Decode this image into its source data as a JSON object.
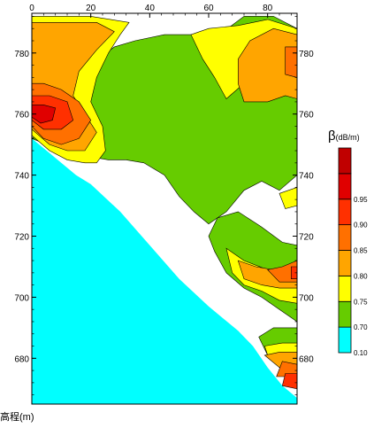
{
  "chart_data": {
    "type": "heatmap",
    "title": "",
    "xlabel": "",
    "ylabel": "高程(m)",
    "xlim": [
      0,
      90
    ],
    "ylim": [
      665,
      793
    ],
    "x_ticks": [
      0,
      20,
      40,
      60,
      80
    ],
    "y_ticks": [
      680,
      700,
      720,
      740,
      760,
      780
    ],
    "legend": {
      "title_symbol": "β",
      "title_unit": "(dB/m)",
      "levels": [
        "0.10",
        "0.70",
        "0.75",
        "0.80",
        "0.85",
        "0.90",
        "0.95"
      ],
      "colors": [
        "#00ffff",
        "#66cc00",
        "#ffff00",
        "#ffa500",
        "#ff7000",
        "#ff3000",
        "#e00000",
        "#c00000"
      ]
    },
    "coverage_boundary": [
      [
        0,
        752
      ],
      [
        5,
        748
      ],
      [
        10,
        744
      ],
      [
        15,
        740
      ],
      [
        20,
        737
      ],
      [
        30,
        728
      ],
      [
        40,
        717
      ],
      [
        50,
        706
      ],
      [
        60,
        697
      ],
      [
        70,
        689
      ],
      [
        75,
        684
      ],
      [
        80,
        677
      ],
      [
        85,
        671
      ],
      [
        90,
        667
      ]
    ],
    "regions": [
      {
        "level": "0.70",
        "points": [
          [
            0,
            752
          ],
          [
            10,
            760
          ],
          [
            14,
            768
          ],
          [
            20,
            776
          ],
          [
            28,
            782
          ],
          [
            35,
            784
          ],
          [
            45,
            786
          ],
          [
            55,
            786
          ],
          [
            65,
            787
          ],
          [
            72,
            792
          ],
          [
            82,
            792
          ],
          [
            90,
            788
          ],
          [
            90,
            740
          ],
          [
            84,
            735
          ],
          [
            78,
            738
          ],
          [
            72,
            735
          ],
          [
            66,
            728
          ],
          [
            60,
            724
          ],
          [
            55,
            728
          ],
          [
            50,
            733
          ],
          [
            45,
            740
          ],
          [
            38,
            744
          ],
          [
            32,
            745
          ],
          [
            26,
            745
          ],
          [
            20,
            746
          ],
          [
            15,
            746
          ],
          [
            10,
            749
          ],
          [
            5,
            750
          ]
        ]
      },
      {
        "level": "0.70",
        "points": [
          [
            63,
            726
          ],
          [
            70,
            728
          ],
          [
            78,
            723
          ],
          [
            85,
            718
          ],
          [
            90,
            717
          ],
          [
            90,
            692
          ],
          [
            84,
            696
          ],
          [
            78,
            700
          ],
          [
            72,
            703
          ],
          [
            66,
            708
          ],
          [
            62,
            715
          ],
          [
            60,
            720
          ]
        ]
      },
      {
        "level": "0.70",
        "points": [
          [
            77,
            687
          ],
          [
            82,
            690
          ],
          [
            88,
            690
          ],
          [
            90,
            690
          ],
          [
            90,
            676
          ],
          [
            85,
            678
          ],
          [
            80,
            681
          ]
        ]
      },
      {
        "level": "0.75",
        "points": [
          [
            0,
            753
          ],
          [
            6,
            748
          ],
          [
            12,
            745
          ],
          [
            18,
            744
          ],
          [
            22,
            744
          ],
          [
            25,
            748
          ],
          [
            24,
            756
          ],
          [
            20,
            764
          ],
          [
            22,
            772
          ],
          [
            26,
            780
          ],
          [
            30,
            786
          ],
          [
            33,
            790
          ],
          [
            20,
            792
          ],
          [
            0,
            792
          ]
        ]
      },
      {
        "level": "0.75",
        "points": [
          [
            66,
            765
          ],
          [
            72,
            770
          ],
          [
            78,
            772
          ],
          [
            84,
            770
          ],
          [
            90,
            768
          ],
          [
            90,
            788
          ],
          [
            80,
            791
          ],
          [
            70,
            789
          ],
          [
            60,
            788
          ],
          [
            54,
            786
          ],
          [
            58,
            778
          ],
          [
            62,
            772
          ]
        ]
      },
      {
        "level": "0.75",
        "points": [
          [
            66,
            716
          ],
          [
            72,
            712
          ],
          [
            80,
            709
          ],
          [
            88,
            708
          ],
          [
            90,
            710
          ],
          [
            90,
            698
          ],
          [
            84,
            699
          ],
          [
            78,
            702
          ],
          [
            72,
            704
          ],
          [
            68,
            708
          ]
        ]
      },
      {
        "level": "0.75",
        "points": [
          [
            84,
            734
          ],
          [
            90,
            736
          ],
          [
            90,
            730
          ],
          [
            86,
            729
          ]
        ]
      },
      {
        "level": "0.75",
        "points": [
          [
            79,
            684
          ],
          [
            85,
            685
          ],
          [
            90,
            685
          ],
          [
            90,
            678
          ],
          [
            84,
            679
          ],
          [
            80,
            681
          ]
        ]
      },
      {
        "level": "0.80",
        "points": [
          [
            0,
            755
          ],
          [
            6,
            750
          ],
          [
            12,
            748
          ],
          [
            18,
            748
          ],
          [
            22,
            754
          ],
          [
            18,
            760
          ],
          [
            14,
            766
          ],
          [
            16,
            774
          ],
          [
            22,
            781
          ],
          [
            28,
            787
          ],
          [
            22,
            790
          ],
          [
            8,
            790
          ],
          [
            0,
            790
          ]
        ]
      },
      {
        "level": "0.80",
        "points": [
          [
            72,
            764
          ],
          [
            80,
            764
          ],
          [
            86,
            766
          ],
          [
            90,
            765
          ],
          [
            90,
            786
          ],
          [
            82,
            788
          ],
          [
            74,
            784
          ],
          [
            70,
            778
          ],
          [
            70,
            770
          ]
        ]
      },
      {
        "level": "0.80",
        "points": [
          [
            70,
            712
          ],
          [
            76,
            710
          ],
          [
            82,
            709
          ],
          [
            88,
            709
          ],
          [
            90,
            712
          ],
          [
            90,
            703
          ],
          [
            84,
            703
          ],
          [
            78,
            704
          ],
          [
            72,
            706
          ]
        ]
      },
      {
        "level": "0.80",
        "points": [
          [
            79,
            681
          ],
          [
            84,
            682
          ],
          [
            90,
            682
          ],
          [
            90,
            677
          ],
          [
            84,
            677
          ]
        ]
      },
      {
        "level": "0.85",
        "points": [
          [
            0,
            756
          ],
          [
            4,
            752
          ],
          [
            10,
            750
          ],
          [
            16,
            752
          ],
          [
            20,
            758
          ],
          [
            16,
            764
          ],
          [
            10,
            768
          ],
          [
            4,
            770
          ],
          [
            0,
            770
          ]
        ]
      },
      {
        "level": "0.85",
        "points": [
          [
            86,
            773
          ],
          [
            90,
            772
          ],
          [
            90,
            782
          ],
          [
            86,
            782
          ]
        ]
      },
      {
        "level": "0.85",
        "points": [
          [
            80,
            709
          ],
          [
            85,
            710
          ],
          [
            90,
            712
          ],
          [
            90,
            705
          ],
          [
            84,
            705
          ]
        ]
      },
      {
        "level": "0.85",
        "points": [
          [
            83,
            674
          ],
          [
            87,
            674
          ],
          [
            90,
            674
          ],
          [
            90,
            678
          ],
          [
            85,
            679
          ]
        ]
      },
      {
        "level": "0.90",
        "points": [
          [
            0,
            758
          ],
          [
            4,
            755
          ],
          [
            10,
            755
          ],
          [
            14,
            758
          ],
          [
            12,
            764
          ],
          [
            6,
            766
          ],
          [
            0,
            766
          ]
        ]
      },
      {
        "level": "0.90",
        "points": [
          [
            88,
            710
          ],
          [
            90,
            710
          ],
          [
            90,
            706
          ],
          [
            88,
            706
          ]
        ]
      },
      {
        "level": "0.90",
        "points": [
          [
            85,
            671
          ],
          [
            90,
            670
          ],
          [
            90,
            675
          ],
          [
            86,
            675
          ]
        ]
      },
      {
        "level": "0.95",
        "points": [
          [
            0,
            759
          ],
          [
            3,
            757
          ],
          [
            7,
            758
          ],
          [
            8,
            762
          ],
          [
            4,
            763
          ],
          [
            0,
            763
          ]
        ]
      }
    ]
  }
}
